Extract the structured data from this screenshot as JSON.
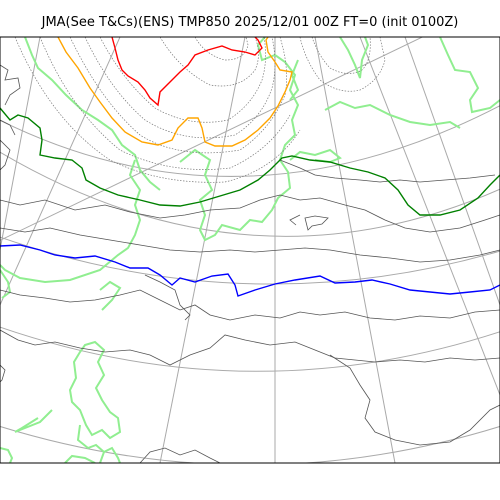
{
  "title": "JMA(See T&Cs)(ENS) TMP850 2025/12/01 00Z FT=0 (init 0100Z)",
  "colors": {
    "coastline": "#90ee90",
    "graticule": "#aaaaaa",
    "isotherm_minor": "#555555",
    "isotherm_minor_fine": "#777777",
    "isotherm_green": "#008000",
    "isotherm_blue": "#0000ff",
    "isotherm_orange": "#ffa500",
    "isotherm_red": "#ff0000",
    "frame": "#000000"
  }
}
